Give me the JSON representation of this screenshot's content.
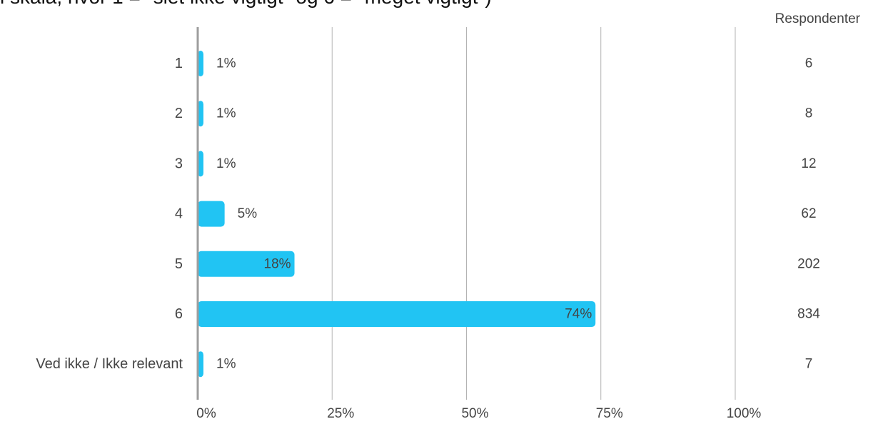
{
  "chart_data": {
    "type": "bar",
    "orientation": "horizontal",
    "title": "l skala, hvor 1 = \"slet ikke vigtigt\" og 6 = \"meget vigtigt\")",
    "categories": [
      "1",
      "2",
      "3",
      "4",
      "5",
      "6",
      "Ved ikke / Ikke relevant"
    ],
    "values": [
      1,
      1,
      1,
      5,
      18,
      74,
      1
    ],
    "value_labels": [
      "1%",
      "1%",
      "1%",
      "5%",
      "18%",
      "74%",
      "1%"
    ],
    "respondents_header": "Respondenter",
    "respondents": [
      "6",
      "8",
      "12",
      "62",
      "202",
      "834",
      "7"
    ],
    "xlim": [
      0,
      100
    ],
    "xticks": [
      "0%",
      "25%",
      "50%",
      "75%",
      "100%"
    ],
    "grid": true,
    "bar_color": "#21c4f3",
    "grid_color": "#b3b3b3",
    "axis_color": "#9e9e9e"
  }
}
